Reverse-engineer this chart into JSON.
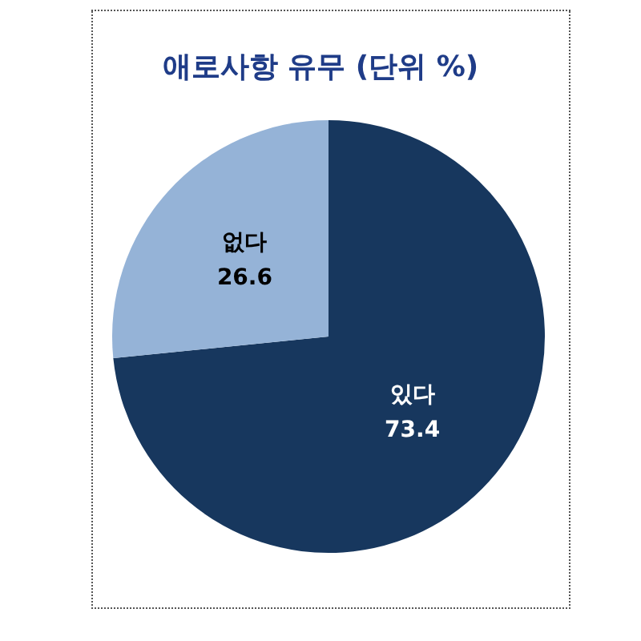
{
  "chart_data": {
    "type": "pie",
    "title": "애로사항 유무 (단위 %)",
    "categories": [
      "있다",
      "없다"
    ],
    "values": [
      73.4,
      26.6
    ],
    "colors": [
      "#17375e",
      "#95b3d7"
    ],
    "data_labels": true,
    "legend": false
  }
}
